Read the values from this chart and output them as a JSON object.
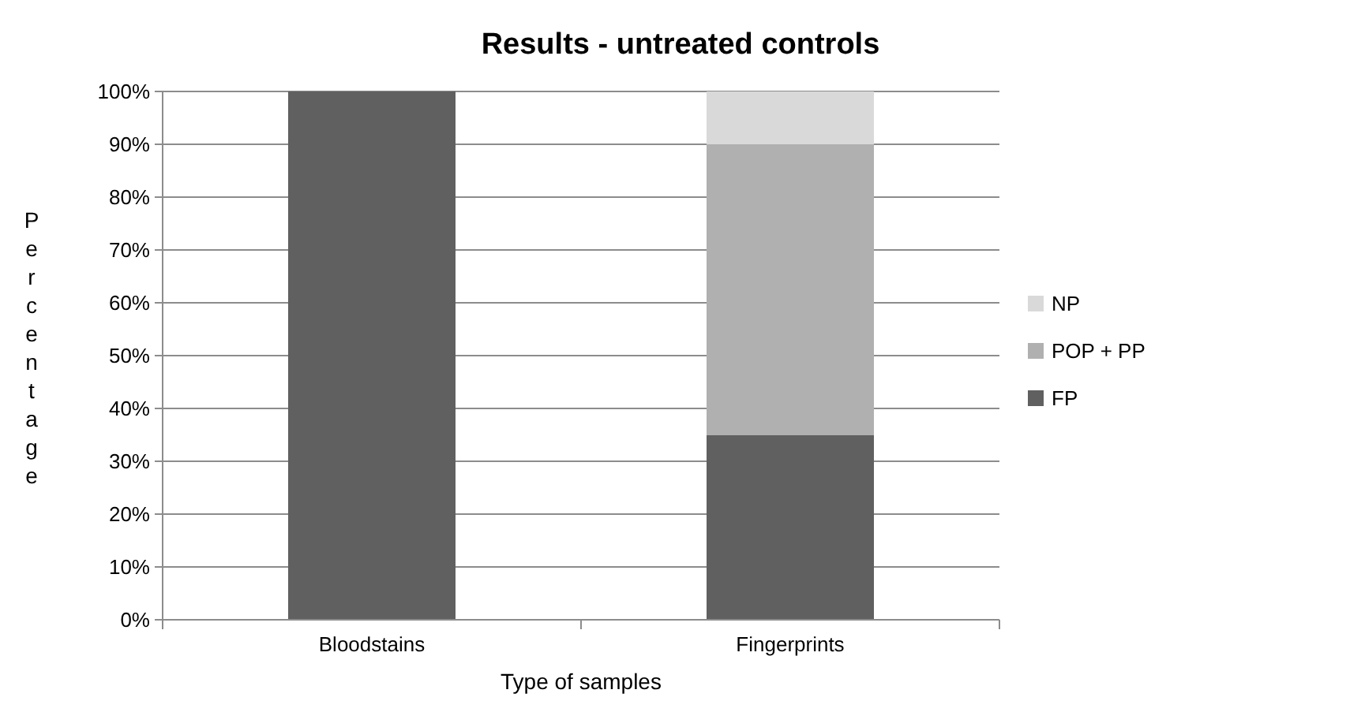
{
  "chart_data": {
    "type": "bar",
    "title": "Results - untreated controls",
    "xlabel": "Type of samples",
    "ylabel": "Percentage",
    "categories": [
      "Bloodstains",
      "Fingerprints"
    ],
    "stacked": true,
    "series": [
      {
        "name": "FP",
        "color": "#606060",
        "values": [
          100,
          35
        ]
      },
      {
        "name": "POP + PP",
        "color": "#b0b0b0",
        "values": [
          0,
          55
        ]
      },
      {
        "name": "NP",
        "color": "#d9d9d9",
        "values": [
          0,
          10
        ]
      }
    ],
    "ylim": [
      0,
      100
    ],
    "yticks": [
      {
        "value": 0,
        "label": "0%"
      },
      {
        "value": 10,
        "label": "10%"
      },
      {
        "value": 20,
        "label": "20%"
      },
      {
        "value": 30,
        "label": "30%"
      },
      {
        "value": 40,
        "label": "40%"
      },
      {
        "value": 50,
        "label": "50%"
      },
      {
        "value": 60,
        "label": "60%"
      },
      {
        "value": 70,
        "label": "70%"
      },
      {
        "value": 80,
        "label": "80%"
      },
      {
        "value": 90,
        "label": "90%"
      },
      {
        "value": 100,
        "label": "100%"
      }
    ],
    "grid": "y",
    "legend": "right"
  }
}
